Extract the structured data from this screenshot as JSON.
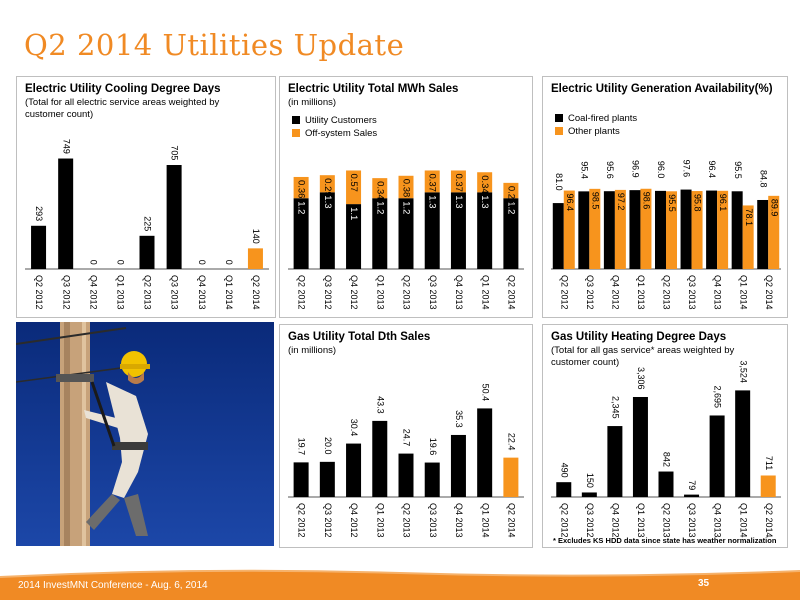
{
  "slide": {
    "title": "Q2 2014 Utilities Update",
    "footer": "2014 InvestMNt Conference - Aug. 6, 2014",
    "page_number": "35"
  },
  "colors": {
    "accent": "#f08a24",
    "black": "#000000",
    "orange": "#f7941d"
  },
  "photo": {
    "icon": "utility-lineman-on-pole-photo"
  },
  "chart_data": [
    {
      "id": "cdd",
      "type": "bar",
      "title": "Electric Utility Cooling Degree Days",
      "subtitle": "(Total for all electric service areas weighted by customer count)",
      "categories": [
        "Q2 2012",
        "Q3 2012",
        "Q4 2012",
        "Q1 2013",
        "Q2 2013",
        "Q3 2013",
        "Q4 2013",
        "Q1 2014",
        "Q2 2014"
      ],
      "values": [
        293,
        749,
        0,
        0,
        225,
        705,
        0,
        0,
        140
      ],
      "value_labels": [
        "293",
        "749",
        "0",
        "0",
        "225",
        "705",
        "0",
        "0",
        "140"
      ],
      "highlight_last": true,
      "ylim": [
        0,
        800
      ]
    },
    {
      "id": "mwh",
      "type": "bar",
      "stacked": true,
      "title": "Electric Utility Total MWh Sales",
      "subtitle": "(in millions)",
      "categories": [
        "Q2 2012",
        "Q3 2012",
        "Q4 2012",
        "Q1 2013",
        "Q2 2013",
        "Q3 2013",
        "Q4 2013",
        "Q1 2014",
        "Q2 2014"
      ],
      "series": [
        {
          "name": "Utility Customers",
          "color": "#000000",
          "values": [
            1.2,
            1.3,
            1.1,
            1.2,
            1.2,
            1.3,
            1.3,
            1.3,
            1.2
          ],
          "labels": [
            "1.2",
            "1.3",
            "1.1",
            "1.2",
            "1.2",
            "1.3",
            "1.3",
            "1.3",
            "1.2"
          ]
        },
        {
          "name": "Off-system Sales",
          "color": "#f7941d",
          "values": [
            0.36,
            0.29,
            0.57,
            0.34,
            0.38,
            0.37,
            0.37,
            0.34,
            0.26
          ],
          "labels": [
            "0.36",
            "0.29",
            "0.57",
            "0.34",
            "0.38",
            "0.37",
            "0.37",
            "0.34",
            "0.26"
          ]
        }
      ],
      "ylim": [
        0,
        2.0
      ],
      "legend": "top-left"
    },
    {
      "id": "avail",
      "type": "bar",
      "grouped": true,
      "title": "Electric Utility Generation Availability(%)",
      "subtitle": "",
      "categories": [
        "Q2 2012",
        "Q3 2012",
        "Q4 2012",
        "Q1 2013",
        "Q2 2013",
        "Q3 2013",
        "Q4 2013",
        "Q1 2014",
        "Q2 2014"
      ],
      "series": [
        {
          "name": "Coal-fired plants",
          "color": "#000000",
          "values": [
            81.0,
            95.4,
            95.6,
            96.9,
            96.0,
            97.6,
            96.4,
            95.5,
            84.8
          ],
          "labels": [
            "81.0",
            "95.4",
            "95.6",
            "96.9",
            "96.0",
            "97.6",
            "96.4",
            "95.5",
            "84.8"
          ]
        },
        {
          "name": "Other plants",
          "color": "#f7941d",
          "values": [
            96.4,
            98.5,
            97.2,
            98.6,
            95.5,
            95.8,
            96.1,
            78.1,
            89.9
          ],
          "labels": [
            "96.4",
            "98.5",
            "97.2",
            "98.6",
            "95.5",
            "95.8",
            "96.1",
            "78.1",
            "89.9"
          ]
        }
      ],
      "ylim": [
        0,
        145
      ],
      "legend": "top-left"
    },
    {
      "id": "dth",
      "type": "bar",
      "title": "Gas Utility Total Dth Sales",
      "subtitle": "(in millions)",
      "categories": [
        "Q2 2012",
        "Q3 2012",
        "Q4 2012",
        "Q1 2013",
        "Q2 2013",
        "Q3 2013",
        "Q4 2013",
        "Q1 2014",
        "Q2 2014"
      ],
      "values": [
        19.7,
        20.0,
        30.4,
        43.3,
        24.7,
        19.6,
        35.3,
        50.4,
        22.4
      ],
      "value_labels": [
        "19.7",
        "20.0",
        "30.4",
        "43.3",
        "24.7",
        "19.6",
        "35.3",
        "50.4",
        "22.4"
      ],
      "highlight_last": true,
      "ylim": [
        0,
        66
      ]
    },
    {
      "id": "hdd",
      "type": "bar",
      "title": "Gas Utility Heating Degree Days",
      "subtitle": "(Total for all gas service* areas weighted by customer count)",
      "footnote": "* Excludes KS HDD data since state has weather normalization",
      "categories": [
        "Q2 2012",
        "Q3 2012",
        "Q4 2012",
        "Q1 2013",
        "Q2 2013",
        "Q3 2013",
        "Q4 2013",
        "Q1 2014",
        "Q2 2014"
      ],
      "values": [
        490,
        150,
        2345,
        3306,
        842,
        79,
        2695,
        3524,
        711
      ],
      "value_labels": [
        "490",
        "150",
        "2,345",
        "3,306",
        "842",
        "79",
        "2,695",
        "3,524",
        "711"
      ],
      "highlight_last": true,
      "ylim": [
        0,
        4000
      ]
    }
  ]
}
